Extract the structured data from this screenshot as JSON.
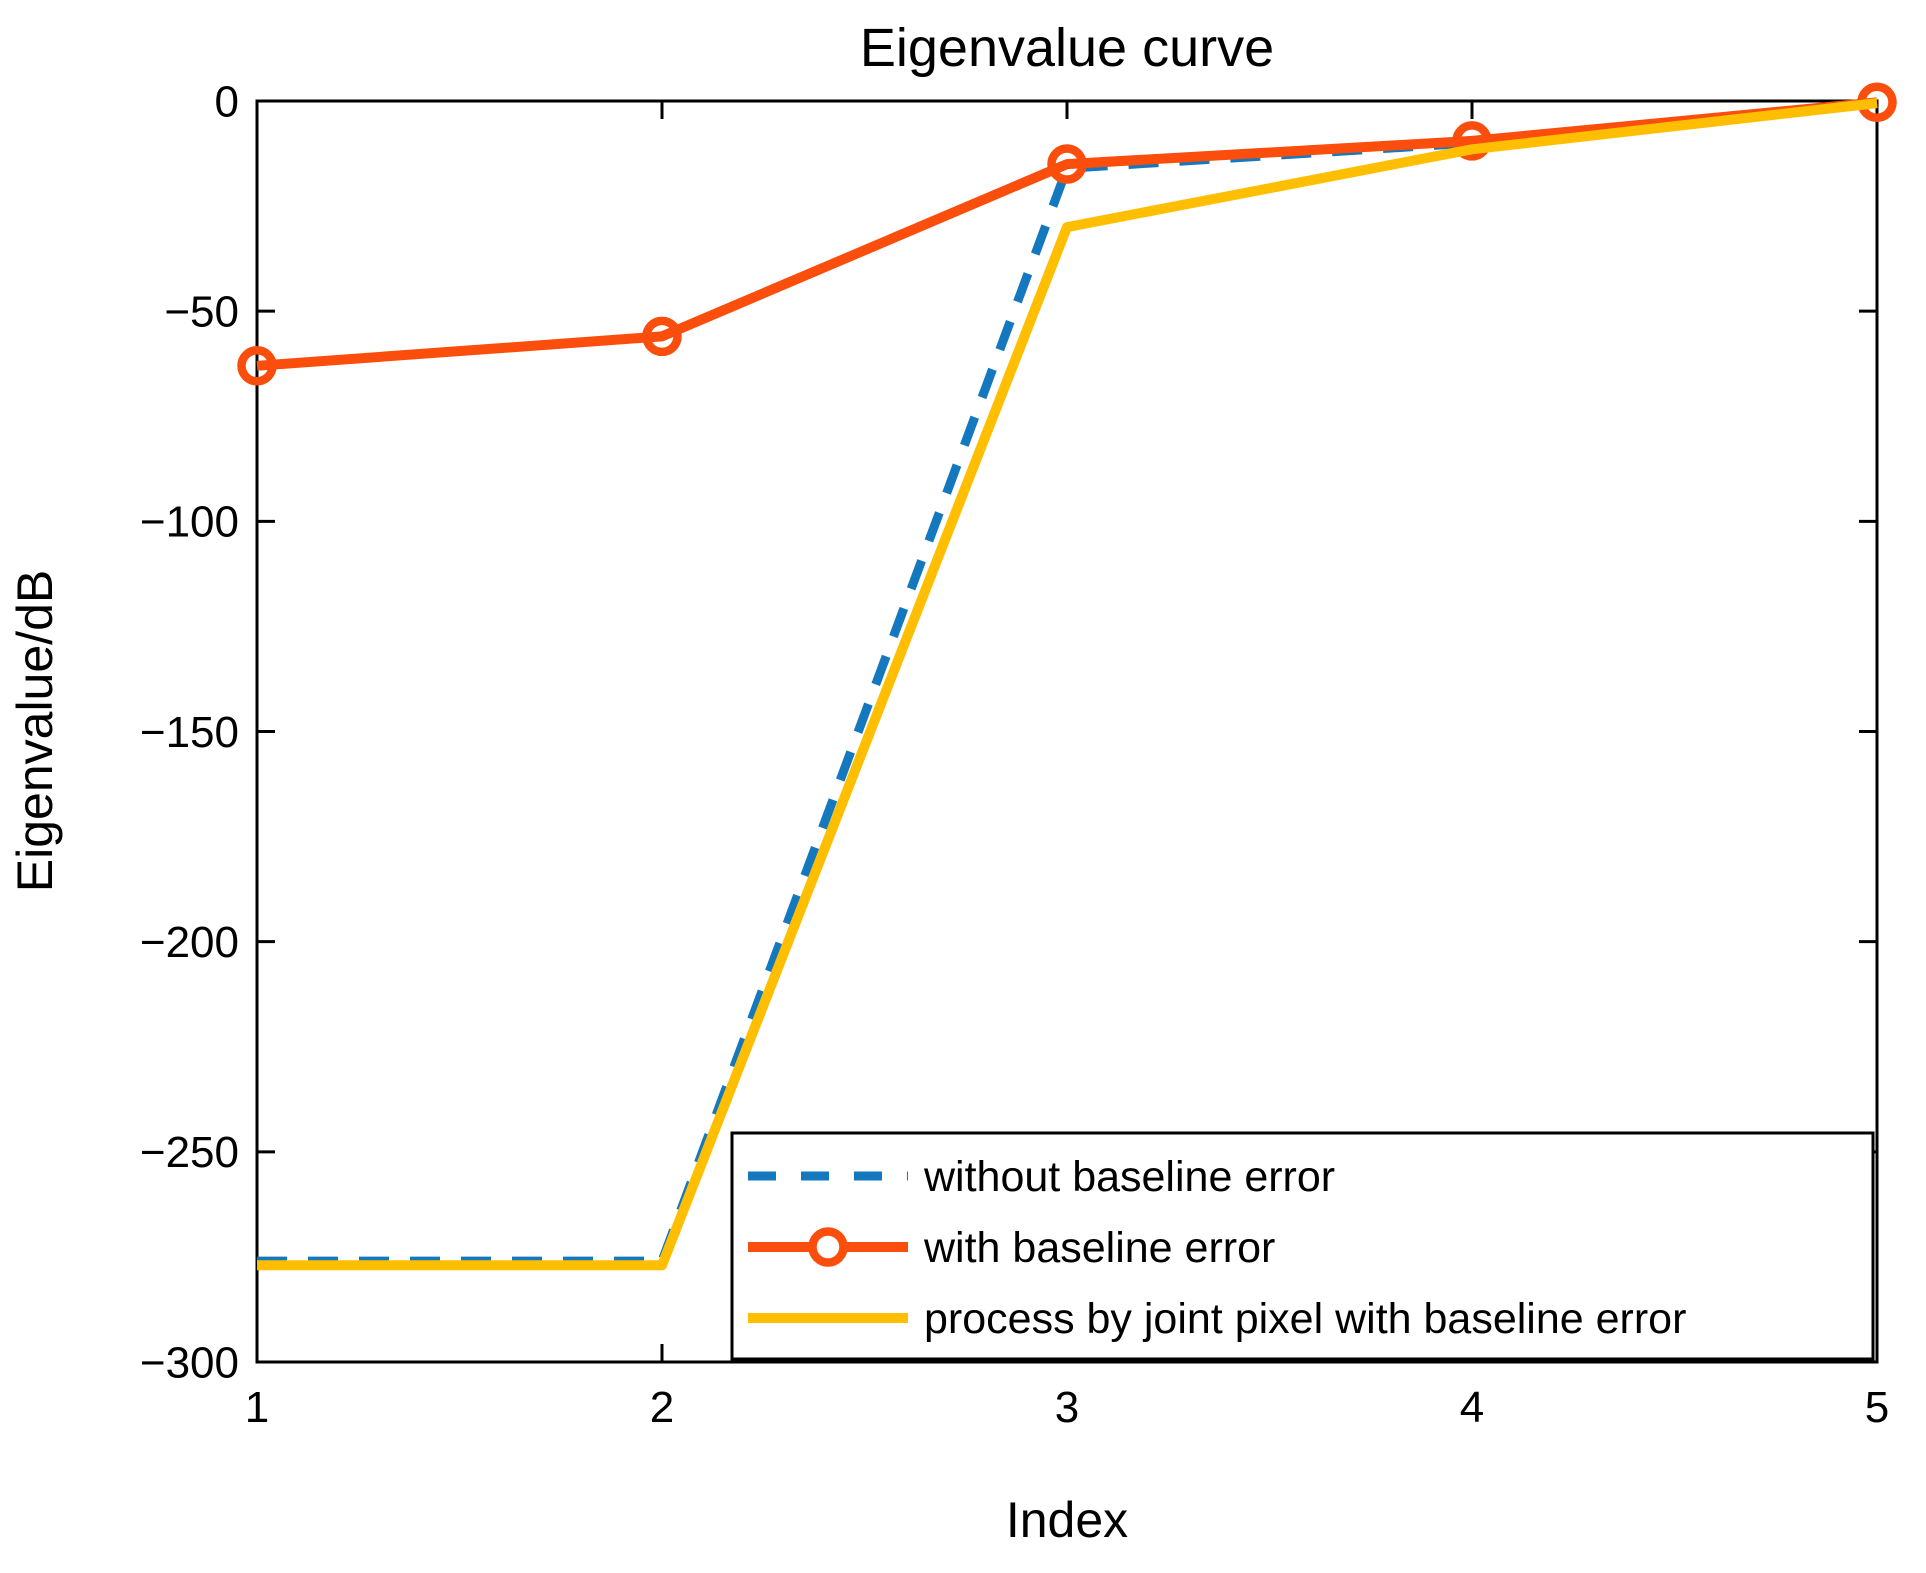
{
  "figure": {
    "background": "#ffffff",
    "axis_color": "#000000"
  },
  "chart_data": {
    "type": "line",
    "title": "Eigenvalue curve",
    "xlabel": "Index",
    "ylabel": "Eigenvalue/dB",
    "x": [
      1,
      2,
      3,
      4,
      5
    ],
    "xlim": [
      1,
      5
    ],
    "ylim": [
      -300,
      0
    ],
    "x_tick_labels": [
      "1",
      "2",
      "3",
      "4",
      "5"
    ],
    "y_ticks": [
      0,
      -50,
      -100,
      -150,
      -200,
      -250,
      -300
    ],
    "y_tick_labels": [
      "0",
      "−50",
      "−100",
      "−150",
      "−200",
      "−250",
      "−300"
    ],
    "grid": false,
    "legend_position": "southeast",
    "series": [
      {
        "name": "without baseline error",
        "color": "#1478be",
        "style": "dashed",
        "marker": "none",
        "values": [
          -276,
          -276,
          -16,
          -10,
          -0.5
        ]
      },
      {
        "name": "with baseline error",
        "color": "#fb4d0c",
        "style": "solid",
        "marker": "circle",
        "values": [
          -63,
          -56,
          -15,
          -9.5,
          -0.3
        ]
      },
      {
        "name": "process by joint pixel with baseline error",
        "color": "#ffbf00",
        "style": "solid",
        "marker": "none",
        "values": [
          -277,
          -277,
          -30,
          -11.5,
          -0.5
        ]
      }
    ]
  }
}
